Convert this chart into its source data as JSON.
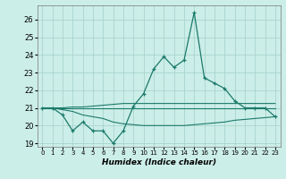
{
  "title": "",
  "xlabel": "Humidex (Indice chaleur)",
  "bg_color": "#cceee8",
  "grid_color": "#aad4ce",
  "line_color": "#1a7a6a",
  "xlim": [
    -0.5,
    23.5
  ],
  "ylim": [
    18.8,
    26.8
  ],
  "yticks": [
    19,
    20,
    21,
    22,
    23,
    24,
    25,
    26
  ],
  "xticks": [
    0,
    1,
    2,
    3,
    4,
    5,
    6,
    7,
    8,
    9,
    10,
    11,
    12,
    13,
    14,
    15,
    16,
    17,
    18,
    19,
    20,
    21,
    22,
    23
  ],
  "main_line": [
    21.0,
    21.0,
    20.6,
    19.7,
    20.2,
    19.7,
    19.7,
    19.0,
    19.7,
    21.1,
    21.8,
    23.2,
    23.9,
    23.3,
    23.7,
    26.4,
    22.7,
    22.4,
    22.1,
    21.4,
    21.0,
    21.0,
    21.0,
    20.5
  ],
  "upper_line": [
    21.0,
    21.0,
    21.0,
    21.05,
    21.05,
    21.1,
    21.15,
    21.2,
    21.25,
    21.25,
    21.25,
    21.25,
    21.25,
    21.25,
    21.25,
    21.25,
    21.25,
    21.25,
    21.25,
    21.25,
    21.25,
    21.25,
    21.25,
    21.25
  ],
  "lower_line": [
    21.0,
    21.0,
    20.9,
    20.8,
    20.6,
    20.5,
    20.4,
    20.2,
    20.1,
    20.05,
    20.0,
    20.0,
    20.0,
    20.0,
    20.0,
    20.05,
    20.1,
    20.15,
    20.2,
    20.3,
    20.35,
    20.4,
    20.45,
    20.5
  ],
  "mid_line": [
    21.0,
    21.0,
    21.0,
    21.0,
    21.0,
    21.0,
    21.0,
    21.0,
    21.0,
    21.0,
    21.0,
    21.0,
    21.0,
    21.0,
    21.0,
    21.0,
    21.0,
    21.0,
    21.0,
    21.0,
    21.0,
    21.0,
    21.0,
    21.0
  ]
}
